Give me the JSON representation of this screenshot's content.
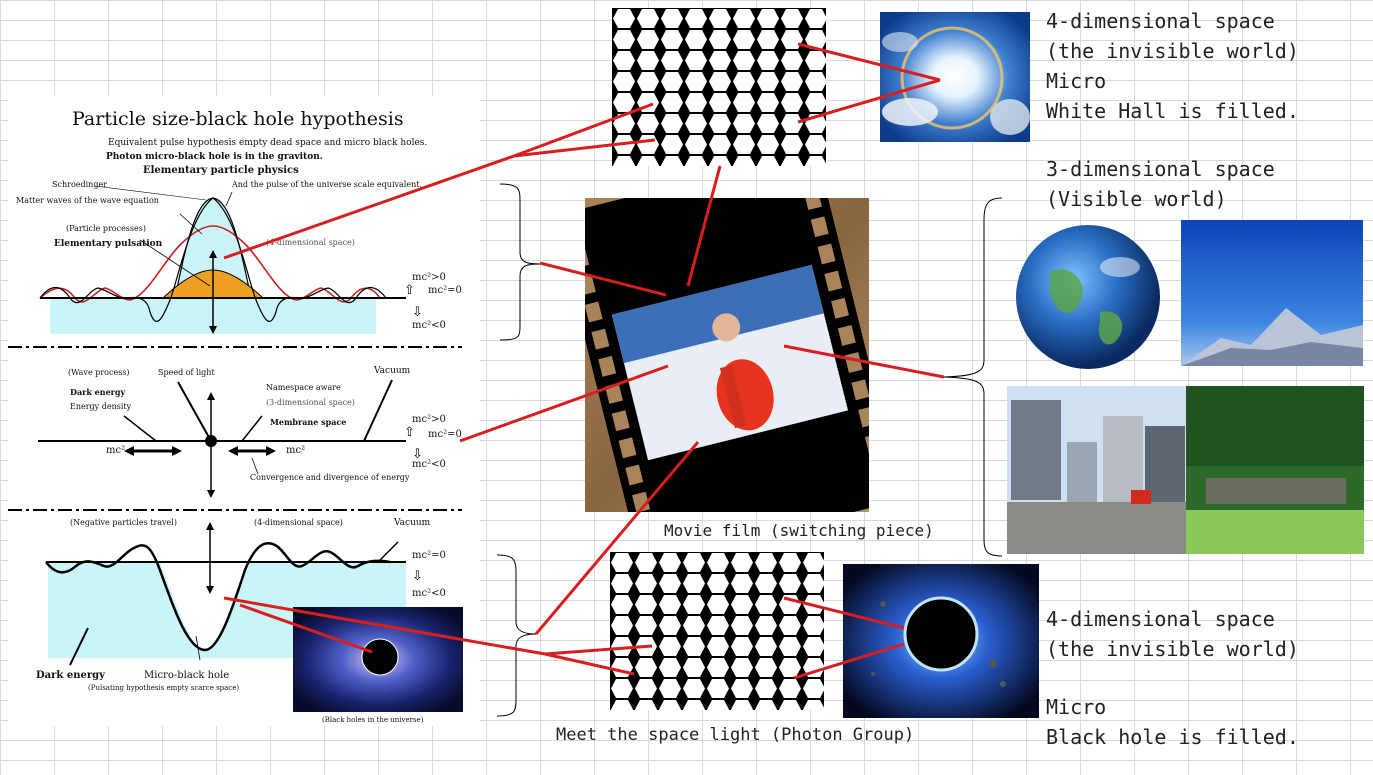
{
  "diagram": {
    "title": "Particle size-black hole hypothesis",
    "subtitle1": "Equivalent pulse hypothesis empty dead space and micro black holes.",
    "subtitle2": "Photon micro-black hole is in the graviton.",
    "top_panel": {
      "elementary_particle_physics": "Elementary particle physics",
      "schroedinger": "Schroedinger",
      "pulse_universe": "And the pulse of the universe scale equivalent.",
      "matter_waves": "Matter waves of the wave equation",
      "particle_processes": "(Particle processes)",
      "elementary_pulsation": "Elementary pulsation",
      "four_dim": "(4-dimensional space)",
      "mc_gt": "mc²>0",
      "mc_eq": "mc²=0",
      "mc_lt": "mc²<0"
    },
    "middle_panel": {
      "wave_process": "(Wave process)",
      "speed_of_light": "Speed of light",
      "namespace_aware": "Namespace aware",
      "vacuum": "Vacuum",
      "dark_energy": "Dark energy",
      "energy_density": "Energy density",
      "three_dim": "(3-dimensional space)",
      "membrane_space": "Membrane space",
      "mc_left": "mc²",
      "mc_right": "mc²",
      "convergence": "Convergence and divergence of energy",
      "mc_gt": "mc²>0",
      "mc_eq": "mc²=0",
      "mc_lt": "mc²<0"
    },
    "bottom_panel": {
      "negative_particles": "(Negative particles travel)",
      "four_dim": "(4-dimensional space)",
      "vacuum": "Vacuum",
      "mc_eq": "mc²=0",
      "mc_lt": "mc²<0",
      "dark_energy": "Dark energy",
      "micro_black_hole": "Micro-black hole",
      "pulsating": "(Pulsating hypothesis empty scarce space)",
      "black_holes_universe": "(Black holes in the universe)"
    }
  },
  "labels": {
    "top_right": [
      "4-dimensional space",
      "(the invisible world)",
      "Micro",
      "White Hall is filled."
    ],
    "mid_right": [
      "3-dimensional space",
      "(Visible world)"
    ],
    "bottom_right": [
      "4-dimensional space",
      "(the invisible world)",
      "",
      "Micro",
      "Black hole is filled."
    ],
    "movie_film": "Movie film (switching piece)",
    "meet_space_light": "Meet the space light (Photon Group)"
  },
  "colors": {
    "connector": "#d81e1e",
    "cyan_fill": "#c9f4f8",
    "orange_fill": "#f0a020"
  }
}
